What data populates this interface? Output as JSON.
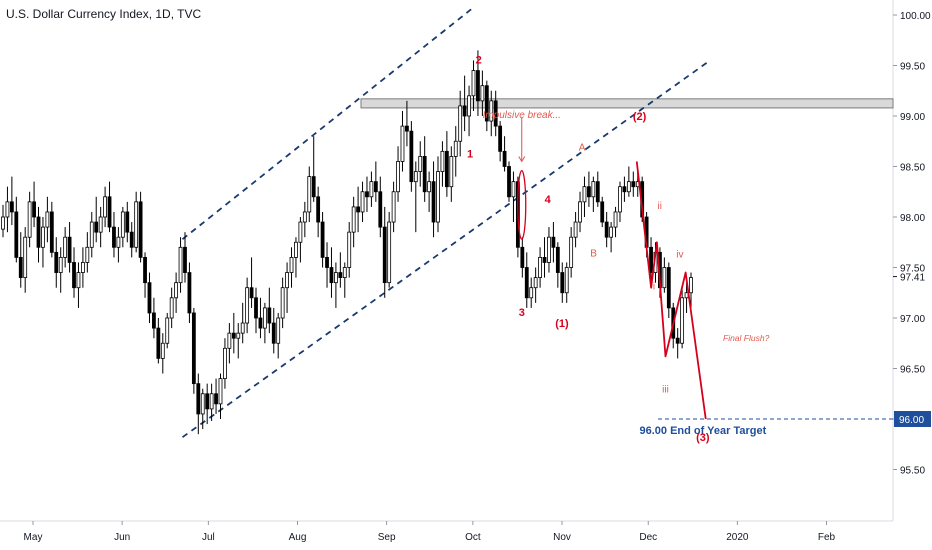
{
  "chart_data": {
    "type": "candlestick",
    "title": "U.S. Dollar Currency Index, 1D, TVC",
    "xlabel": "",
    "ylabel": "",
    "ylim": [
      95.45,
      100.05
    ],
    "y_ticks": [
      "100.00",
      "99.50",
      "99.00",
      "98.50",
      "98.00",
      "97.50",
      "97.00",
      "96.50",
      "96.00",
      "95.50"
    ],
    "x_ticks": [
      "May",
      "Jun",
      "Jul",
      "Aug",
      "Sep",
      "Oct",
      "Nov",
      "Dec",
      "2020",
      "Feb"
    ],
    "last_price": "97.41",
    "target_price": "96.00",
    "colors": {
      "up": "#ffffff",
      "down": "#000000",
      "wick": "#000000",
      "annotation": "#d6001c",
      "channel": "#1a3a6e",
      "target_box": "#1f4e9c",
      "price_tag": "#1f3a73"
    },
    "resistance_zone": {
      "y_range": [
        99.08,
        99.17
      ],
      "x_range": [
        "Sep",
        "axis"
      ]
    },
    "channel": {
      "upper": {
        "from": {
          "date": "Jun 22",
          "y": 97.78
        },
        "to": {
          "date": "Oct 1",
          "y": 100.07
        }
      },
      "lower": {
        "from": {
          "date": "Jun 22",
          "y": 95.82
        },
        "to": {
          "date": "Dec 22",
          "y": 99.54
        }
      }
    },
    "wave_labels": [
      {
        "text": "1",
        "date": "Sep 30",
        "y": 98.59
      },
      {
        "text": "2",
        "date": "Oct 3",
        "y": 99.52
      },
      {
        "text": "3",
        "date": "Oct 18",
        "y": 97.02
      },
      {
        "text": "4",
        "date": "Oct 27",
        "y": 98.14
      },
      {
        "text": "(1)",
        "date": "Nov 1",
        "y": 96.91
      },
      {
        "text": "A",
        "date": "Nov 8",
        "y": 98.66
      },
      {
        "text": "B",
        "date": "Nov 12",
        "y": 97.61
      },
      {
        "text": "(2)",
        "date": "Nov 28",
        "y": 98.96
      },
      {
        "text": "ii",
        "date": "Dec 5",
        "y": 98.08
      },
      {
        "text": "i",
        "date": "Dec 3",
        "y": 97.28
      },
      {
        "text": "iii",
        "date": "Dec 7",
        "y": 96.26
      },
      {
        "text": "iv",
        "date": "Dec 12",
        "y": 97.6
      },
      {
        "text": "(3)",
        "date": "Dec 20",
        "y": 95.78
      }
    ],
    "annotations": [
      {
        "text": "Impulsive break...",
        "date": "Oct 18",
        "y": 99.11
      },
      {
        "text": "Final Flush?",
        "date": "Dec 27",
        "y": 96.77
      },
      {
        "text": "96.00 End of Year Target",
        "date": "Dec 20",
        "y": 95.92
      }
    ],
    "projection_path": [
      {
        "date": "Nov 27",
        "y": 98.55
      },
      {
        "date": "Dec 2",
        "y": 97.3
      },
      {
        "date": "Dec 4",
        "y": 97.75
      },
      {
        "date": "Dec 7",
        "y": 96.62
      },
      {
        "date": "Dec 14",
        "y": 97.45
      },
      {
        "date": "Dec 21",
        "y": 96.0
      }
    ],
    "candles_ohlc": [
      [
        97.88,
        98.12,
        97.8,
        98.0
      ],
      [
        98.0,
        98.3,
        97.85,
        98.15
      ],
      [
        98.15,
        98.4,
        97.92,
        98.05
      ],
      [
        98.05,
        98.2,
        97.55,
        97.6
      ],
      [
        97.6,
        97.85,
        97.3,
        97.4
      ],
      [
        97.4,
        97.9,
        97.25,
        97.8
      ],
      [
        97.8,
        98.25,
        97.7,
        98.15
      ],
      [
        98.15,
        98.35,
        97.9,
        98.0
      ],
      [
        98.0,
        98.1,
        97.55,
        97.7
      ],
      [
        97.7,
        98.0,
        97.5,
        97.9
      ],
      [
        97.9,
        98.2,
        97.75,
        98.05
      ],
      [
        98.05,
        98.15,
        97.6,
        97.65
      ],
      [
        97.65,
        97.8,
        97.3,
        97.45
      ],
      [
        97.45,
        97.7,
        97.25,
        97.6
      ],
      [
        97.6,
        97.9,
        97.5,
        97.8
      ],
      [
        97.8,
        97.95,
        97.45,
        97.55
      ],
      [
        97.55,
        97.7,
        97.2,
        97.3
      ],
      [
        97.3,
        97.55,
        97.1,
        97.45
      ],
      [
        97.45,
        97.7,
        97.3,
        97.55
      ],
      [
        97.55,
        97.85,
        97.45,
        97.7
      ],
      [
        97.7,
        98.05,
        97.6,
        97.95
      ],
      [
        97.95,
        98.2,
        97.75,
        97.85
      ],
      [
        97.85,
        98.1,
        97.7,
        98.0
      ],
      [
        98.0,
        98.3,
        97.9,
        98.2
      ],
      [
        98.2,
        98.35,
        97.85,
        97.9
      ],
      [
        97.9,
        98.05,
        97.6,
        97.7
      ],
      [
        97.7,
        97.9,
        97.55,
        97.8
      ],
      [
        97.8,
        98.1,
        97.7,
        98.05
      ],
      [
        98.05,
        98.15,
        97.75,
        97.85
      ],
      [
        97.85,
        97.95,
        97.6,
        97.7
      ],
      [
        97.7,
        98.25,
        97.65,
        98.15
      ],
      [
        98.15,
        98.25,
        97.55,
        97.6
      ],
      [
        97.6,
        97.65,
        97.2,
        97.35
      ],
      [
        97.35,
        97.45,
        96.95,
        97.05
      ],
      [
        97.05,
        97.2,
        96.8,
        96.9
      ],
      [
        96.9,
        97.0,
        96.55,
        96.6
      ],
      [
        96.6,
        96.85,
        96.45,
        96.75
      ],
      [
        96.75,
        97.05,
        96.7,
        97.0
      ],
      [
        97.0,
        97.3,
        96.9,
        97.2
      ],
      [
        97.2,
        97.45,
        97.05,
        97.35
      ],
      [
        97.35,
        97.8,
        97.25,
        97.7
      ],
      [
        97.7,
        97.85,
        97.35,
        97.45
      ],
      [
        97.45,
        97.55,
        96.95,
        97.05
      ],
      [
        97.05,
        97.1,
        96.25,
        96.35
      ],
      [
        96.35,
        96.45,
        95.85,
        96.05
      ],
      [
        96.05,
        96.3,
        95.9,
        96.25
      ],
      [
        96.25,
        96.35,
        95.95,
        96.1
      ],
      [
        96.1,
        96.35,
        95.98,
        96.25
      ],
      [
        96.25,
        96.4,
        96.05,
        96.15
      ],
      [
        96.15,
        96.45,
        96.0,
        96.4
      ],
      [
        96.4,
        96.8,
        96.3,
        96.7
      ],
      [
        96.7,
        96.95,
        96.55,
        96.85
      ],
      [
        96.85,
        97.05,
        96.65,
        96.8
      ],
      [
        96.8,
        96.95,
        96.6,
        96.85
      ],
      [
        96.85,
        97.15,
        96.75,
        96.95
      ],
      [
        96.95,
        97.4,
        96.85,
        97.3
      ],
      [
        97.3,
        97.6,
        97.1,
        97.2
      ],
      [
        97.2,
        97.3,
        96.85,
        97.0
      ],
      [
        97.0,
        97.2,
        96.8,
        96.9
      ],
      [
        96.9,
        97.15,
        96.75,
        97.1
      ],
      [
        97.1,
        97.3,
        96.85,
        96.95
      ],
      [
        96.95,
        97.1,
        96.65,
        96.75
      ],
      [
        96.75,
        97.05,
        96.6,
        97.0
      ],
      [
        97.0,
        97.4,
        96.9,
        97.3
      ],
      [
        97.3,
        97.55,
        97.05,
        97.45
      ],
      [
        97.45,
        97.7,
        97.3,
        97.6
      ],
      [
        97.6,
        97.8,
        97.4,
        97.75
      ],
      [
        97.75,
        98.0,
        97.55,
        97.95
      ],
      [
        97.95,
        98.15,
        97.8,
        98.05
      ],
      [
        98.05,
        98.5,
        97.95,
        98.4
      ],
      [
        98.4,
        98.8,
        98.15,
        98.2
      ],
      [
        98.2,
        98.3,
        97.8,
        97.95
      ],
      [
        97.95,
        98.05,
        97.5,
        97.6
      ],
      [
        97.6,
        97.75,
        97.3,
        97.5
      ],
      [
        97.5,
        97.7,
        97.2,
        97.35
      ],
      [
        97.35,
        97.55,
        97.1,
        97.45
      ],
      [
        97.45,
        97.65,
        97.3,
        97.4
      ],
      [
        97.4,
        97.55,
        97.2,
        97.5
      ],
      [
        97.5,
        97.95,
        97.4,
        97.85
      ],
      [
        97.85,
        98.2,
        97.7,
        98.1
      ],
      [
        98.1,
        98.3,
        97.85,
        98.05
      ],
      [
        98.05,
        98.35,
        97.95,
        98.25
      ],
      [
        98.25,
        98.4,
        98.05,
        98.2
      ],
      [
        98.2,
        98.45,
        98.1,
        98.35
      ],
      [
        98.35,
        98.55,
        98.15,
        98.25
      ],
      [
        98.25,
        98.4,
        97.8,
        97.9
      ],
      [
        97.9,
        98.1,
        97.2,
        97.35
      ],
      [
        97.35,
        98.05,
        97.3,
        97.95
      ],
      [
        97.95,
        98.35,
        97.85,
        98.25
      ],
      [
        98.25,
        98.7,
        98.15,
        98.55
      ],
      [
        98.55,
        99.05,
        98.45,
        98.9
      ],
      [
        98.9,
        99.15,
        98.7,
        98.85
      ],
      [
        98.85,
        98.95,
        98.25,
        98.35
      ],
      [
        98.35,
        98.55,
        97.85,
        98.45
      ],
      [
        98.45,
        98.75,
        98.3,
        98.6
      ],
      [
        98.6,
        98.8,
        98.15,
        98.25
      ],
      [
        98.25,
        98.45,
        98.05,
        98.35
      ],
      [
        98.35,
        98.55,
        97.8,
        97.95
      ],
      [
        97.95,
        98.6,
        97.85,
        98.45
      ],
      [
        98.45,
        98.75,
        98.3,
        98.65
      ],
      [
        98.65,
        98.85,
        98.2,
        98.3
      ],
      [
        98.3,
        98.7,
        98.15,
        98.6
      ],
      [
        98.6,
        98.9,
        98.4,
        98.75
      ],
      [
        98.75,
        99.25,
        98.6,
        99.1
      ],
      [
        99.1,
        99.4,
        98.85,
        99.0
      ],
      [
        99.0,
        99.3,
        98.8,
        99.2
      ],
      [
        99.2,
        99.55,
        99.05,
        99.45
      ],
      [
        99.45,
        99.65,
        99.0,
        99.15
      ],
      [
        99.15,
        99.45,
        99.0,
        99.3
      ],
      [
        99.3,
        99.35,
        98.85,
        98.95
      ],
      [
        98.95,
        99.25,
        98.8,
        99.15
      ],
      [
        99.15,
        99.25,
        98.8,
        98.9
      ],
      [
        98.9,
        98.95,
        98.55,
        98.65
      ],
      [
        98.65,
        98.8,
        98.45,
        98.5
      ],
      [
        98.5,
        98.55,
        98.15,
        98.2
      ],
      [
        98.2,
        98.45,
        97.95,
        98.35
      ],
      [
        98.35,
        98.4,
        97.6,
        97.7
      ],
      [
        97.7,
        97.8,
        97.4,
        97.5
      ],
      [
        97.5,
        97.65,
        97.1,
        97.2
      ],
      [
        97.2,
        97.4,
        97.1,
        97.3
      ],
      [
        97.3,
        97.5,
        97.15,
        97.4
      ],
      [
        97.4,
        97.7,
        97.3,
        97.6
      ],
      [
        97.6,
        97.8,
        97.4,
        97.55
      ],
      [
        97.55,
        97.9,
        97.45,
        97.8
      ],
      [
        97.8,
        97.95,
        97.55,
        97.7
      ],
      [
        97.7,
        97.75,
        97.3,
        97.45
      ],
      [
        97.45,
        97.55,
        97.15,
        97.25
      ],
      [
        97.25,
        97.55,
        97.15,
        97.5
      ],
      [
        97.5,
        97.9,
        97.4,
        97.8
      ],
      [
        97.8,
        98.05,
        97.7,
        97.95
      ],
      [
        97.95,
        98.25,
        97.85,
        98.15
      ],
      [
        98.15,
        98.4,
        98.0,
        98.3
      ],
      [
        98.3,
        98.45,
        98.1,
        98.2
      ],
      [
        98.2,
        98.4,
        98.05,
        98.35
      ],
      [
        98.35,
        98.45,
        98.1,
        98.15
      ],
      [
        98.15,
        98.2,
        97.9,
        97.95
      ],
      [
        97.95,
        98.05,
        97.7,
        97.8
      ],
      [
        97.8,
        97.95,
        97.65,
        97.9
      ],
      [
        97.9,
        98.1,
        97.8,
        98.05
      ],
      [
        98.05,
        98.35,
        97.95,
        98.3
      ],
      [
        98.3,
        98.4,
        98.15,
        98.25
      ],
      [
        98.25,
        98.5,
        98.2,
        98.35
      ],
      [
        98.35,
        98.45,
        98.2,
        98.3
      ],
      [
        98.3,
        98.45,
        98.2,
        98.35
      ],
      [
        98.35,
        98.4,
        97.95,
        98.0
      ],
      [
        98.0,
        98.05,
        97.6,
        97.7
      ],
      [
        97.7,
        97.8,
        97.35,
        97.45
      ],
      [
        97.45,
        97.75,
        97.35,
        97.65
      ],
      [
        97.65,
        97.7,
        97.2,
        97.3
      ],
      [
        97.3,
        97.6,
        97.25,
        97.5
      ],
      [
        97.5,
        97.55,
        97.0,
        97.1
      ],
      [
        97.1,
        97.15,
        96.7,
        96.8
      ],
      [
        96.8,
        96.9,
        96.6,
        96.75
      ],
      [
        96.75,
        97.3,
        96.7,
        97.2
      ],
      [
        97.2,
        97.35,
        97.05,
        97.25
      ],
      [
        97.25,
        97.45,
        97.1,
        97.4
      ]
    ]
  }
}
